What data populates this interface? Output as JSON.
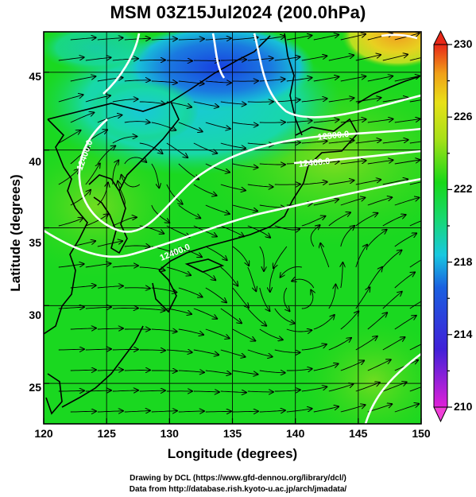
{
  "title": "MSM 03Z15Jul2024 (200.0hPa)",
  "xlabel": "Longitude (degrees)",
  "ylabel": "Latitude  (degrees)",
  "x_ticks": [
    "120",
    "125",
    "130",
    "135",
    "140",
    "145",
    "150"
  ],
  "y_ticks": [
    "25",
    "30",
    "35",
    "40",
    "45"
  ],
  "colorbar_ticks": [
    "210",
    "214",
    "218",
    "222",
    "226",
    "230"
  ],
  "contour_labels": [
    "12400.0",
    "12300.0",
    "12400.0",
    "12400.0"
  ],
  "footer": {
    "line1": "Drawing by DCL (https://www.gfd-dennou.org/library/dcl/)",
    "line2": "Data from http://database.rish.kyoto-u.ac.jp/arch/jmadata/"
  },
  "map": {
    "lon_range": [
      120,
      150
    ],
    "lat_range": [
      22.4,
      47.6
    ],
    "colorbar_range": [
      210,
      230
    ],
    "colors": {
      "low": "#e000e0",
      "blue": "#1a3cd8",
      "cyan": "#18d8d0",
      "green": "#18d818",
      "yellow": "#e8e818",
      "high": "#e02818",
      "contour": "#ffffff",
      "coast": "#000000"
    },
    "vortices": [
      {
        "name": "cyclone-center-northwest",
        "lon": 127.2,
        "lat": 38.9
      },
      {
        "name": "anticyclone-center-south",
        "lon": 140.5,
        "lat": 30.3
      }
    ]
  }
}
